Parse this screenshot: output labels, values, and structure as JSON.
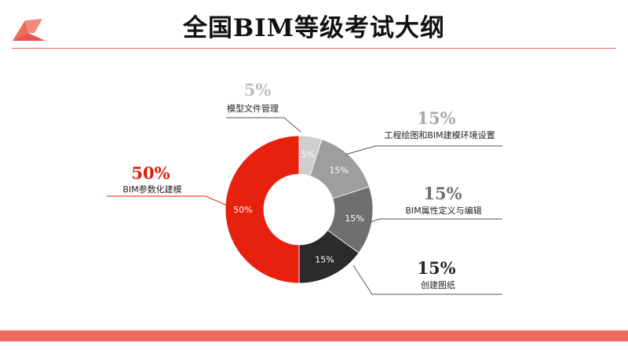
{
  "slide": {
    "title": "全国BIM等级考试大纲"
  },
  "colors": {
    "accent": "#ee6b5b",
    "title_rule": "#e8675a"
  },
  "chart_data": {
    "type": "pie",
    "donut": true,
    "title": "",
    "slices": [
      {
        "label": "模型文件管理",
        "value": 5,
        "display": "5%",
        "color": "#cfcfcf",
        "big_color": "#bdbdbd"
      },
      {
        "label": "工程绘图和BIM建模环境设置",
        "value": 15,
        "display": "15%",
        "color": "#9e9e9e",
        "big_color": "#a9a9a9"
      },
      {
        "label": "BIM属性定义与编辑",
        "value": 15,
        "display": "15%",
        "color": "#6f6f6f",
        "big_color": "#6f6f6f"
      },
      {
        "label": "创建图纸",
        "value": 15,
        "display": "15%",
        "color": "#2b2b2b",
        "big_color": "#262626"
      },
      {
        "label": "BIM参数化建模",
        "value": 50,
        "display": "50%",
        "color": "#e8210f",
        "big_color": "#e01b0d"
      }
    ]
  }
}
